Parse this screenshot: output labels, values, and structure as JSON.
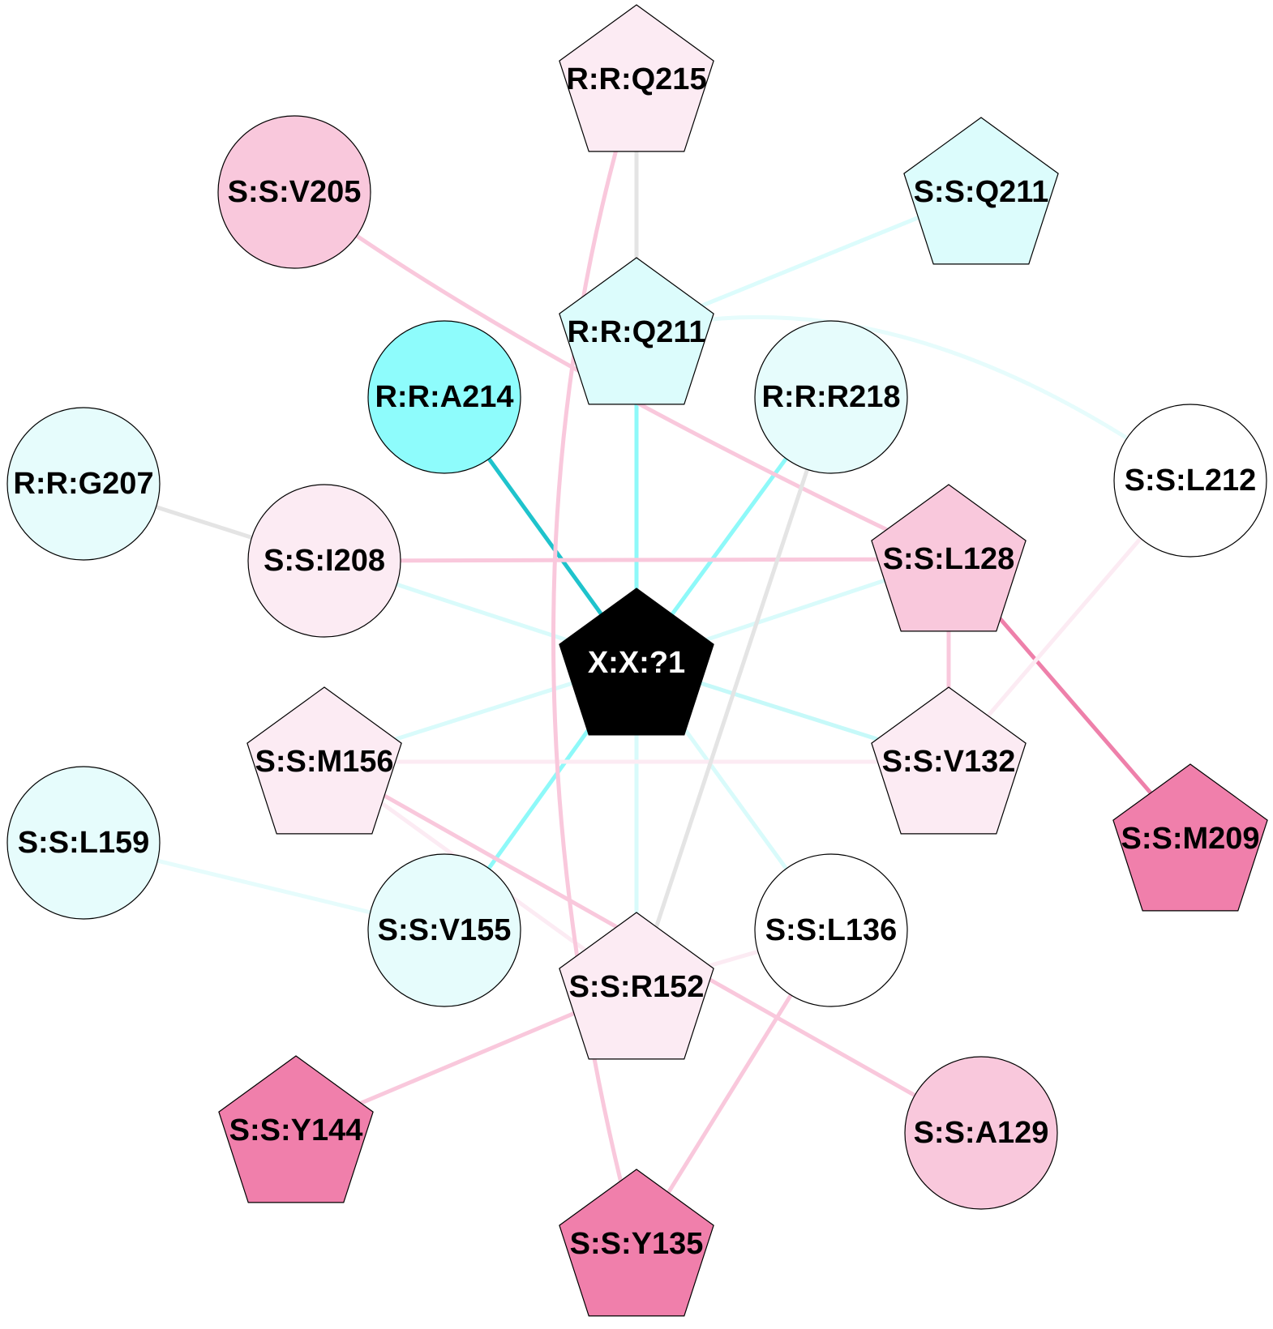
{
  "nodes": [
    {
      "id": "rq215",
      "label": "R:R:Q215",
      "shape": "pentagon",
      "fill": "#fcebf3"
    },
    {
      "id": "sv205",
      "label": "S:S:V205",
      "shape": "circle",
      "fill": "#f9c8dc"
    },
    {
      "id": "sq211",
      "label": "S:S:Q211",
      "shape": "pentagon",
      "fill": "#dcfcfc"
    },
    {
      "id": "rq211",
      "label": "R:R:Q211",
      "shape": "pentagon",
      "fill": "#dcfcfc"
    },
    {
      "id": "ra214",
      "label": "R:R:A214",
      "shape": "circle",
      "fill": "#8efcfc"
    },
    {
      "id": "rr218",
      "label": "R:R:R218",
      "shape": "circle",
      "fill": "#e6fcfc"
    },
    {
      "id": "rg207",
      "label": "R:R:G207",
      "shape": "circle",
      "fill": "#e6fcfc"
    },
    {
      "id": "sl212",
      "label": "S:S:L212",
      "shape": "circle",
      "fill": "#ffffff"
    },
    {
      "id": "si208",
      "label": "S:S:I208",
      "shape": "circle",
      "fill": "#fcebf3"
    },
    {
      "id": "sl128",
      "label": "S:S:L128",
      "shape": "pentagon",
      "fill": "#f9c8dc"
    },
    {
      "id": "x1",
      "label": "X:X:?1",
      "shape": "pentagon",
      "fill": "#000000",
      "text_color": "#ffffff"
    },
    {
      "id": "sm156",
      "label": "S:S:M156",
      "shape": "pentagon",
      "fill": "#fcebf3"
    },
    {
      "id": "sv132",
      "label": "S:S:V132",
      "shape": "pentagon",
      "fill": "#fcebf3"
    },
    {
      "id": "sm209",
      "label": "S:S:M209",
      "shape": "pentagon",
      "fill": "#f07fab"
    },
    {
      "id": "sl159",
      "label": "S:S:L159",
      "shape": "circle",
      "fill": "#e6fcfc"
    },
    {
      "id": "sv155",
      "label": "S:S:V155",
      "shape": "circle",
      "fill": "#e6fcfc"
    },
    {
      "id": "sl136",
      "label": "S:S:L136",
      "shape": "circle",
      "fill": "#ffffff"
    },
    {
      "id": "sr152",
      "label": "S:S:R152",
      "shape": "pentagon",
      "fill": "#fcebf3"
    },
    {
      "id": "sy144",
      "label": "S:S:Y144",
      "shape": "pentagon",
      "fill": "#f07fab"
    },
    {
      "id": "sa129",
      "label": "S:S:A129",
      "shape": "circle",
      "fill": "#f9c8dc"
    },
    {
      "id": "sy135",
      "label": "S:S:Y135",
      "shape": "pentagon",
      "fill": "#f07fab"
    }
  ],
  "edges": [
    {
      "from": "x1",
      "to": "ra214",
      "color": "#1fc3cc"
    },
    {
      "from": "x1",
      "to": "rq211",
      "color": "#8ef9f9"
    },
    {
      "from": "x1",
      "to": "rr218",
      "color": "#8ef9f9"
    },
    {
      "from": "x1",
      "to": "sv155",
      "color": "#8ef9f9"
    },
    {
      "from": "x1",
      "to": "si208",
      "color": "#d9fbfb"
    },
    {
      "from": "x1",
      "to": "sl128",
      "color": "#d9fbfb"
    },
    {
      "from": "x1",
      "to": "sm156",
      "color": "#d9fbfb"
    },
    {
      "from": "x1",
      "to": "sv132",
      "color": "#c6f9f9"
    },
    {
      "from": "x1",
      "to": "sr152",
      "color": "#d9fbfb"
    },
    {
      "from": "x1",
      "to": "sl136",
      "color": "#d9fbfb"
    },
    {
      "from": "rq215",
      "to": "rq211",
      "color": "#e4e4e4"
    },
    {
      "from": "rq211",
      "to": "sq211",
      "color": "#dcfcfc"
    },
    {
      "from": "rq211",
      "to": "sl212",
      "color": "#e6fcfc",
      "curve": true
    },
    {
      "from": "rg207",
      "to": "si208",
      "color": "#e4e4e4"
    },
    {
      "from": "si208",
      "to": "sl128",
      "color": "#f9c8dc"
    },
    {
      "from": "sv205",
      "to": "sl128",
      "color": "#f9c8dc",
      "curve": true
    },
    {
      "from": "sl128",
      "to": "sv132",
      "color": "#f9c8dc"
    },
    {
      "from": "sl128",
      "to": "sm209",
      "color": "#ee80aa"
    },
    {
      "from": "sl212",
      "to": "sv132",
      "color": "#fcebf3"
    },
    {
      "from": "sm156",
      "to": "sv132",
      "color": "#fcebf3"
    },
    {
      "from": "sm156",
      "to": "sr152",
      "color": "#fcebf3"
    },
    {
      "from": "sm156",
      "to": "sa129",
      "color": "#f9c8dc"
    },
    {
      "from": "rr218",
      "to": "sr152",
      "color": "#e4e4e4"
    },
    {
      "from": "sl159",
      "to": "sv155",
      "color": "#e6fcfc"
    },
    {
      "from": "sr152",
      "to": "sy144",
      "color": "#f9c8dc"
    },
    {
      "from": "sr152",
      "to": "sl136",
      "color": "#fcebf3"
    },
    {
      "from": "sl136",
      "to": "sy135",
      "color": "#f9c8dc"
    },
    {
      "from": "rq215",
      "to": "sy135",
      "color": "#f9c8dc",
      "curve": true
    }
  ]
}
